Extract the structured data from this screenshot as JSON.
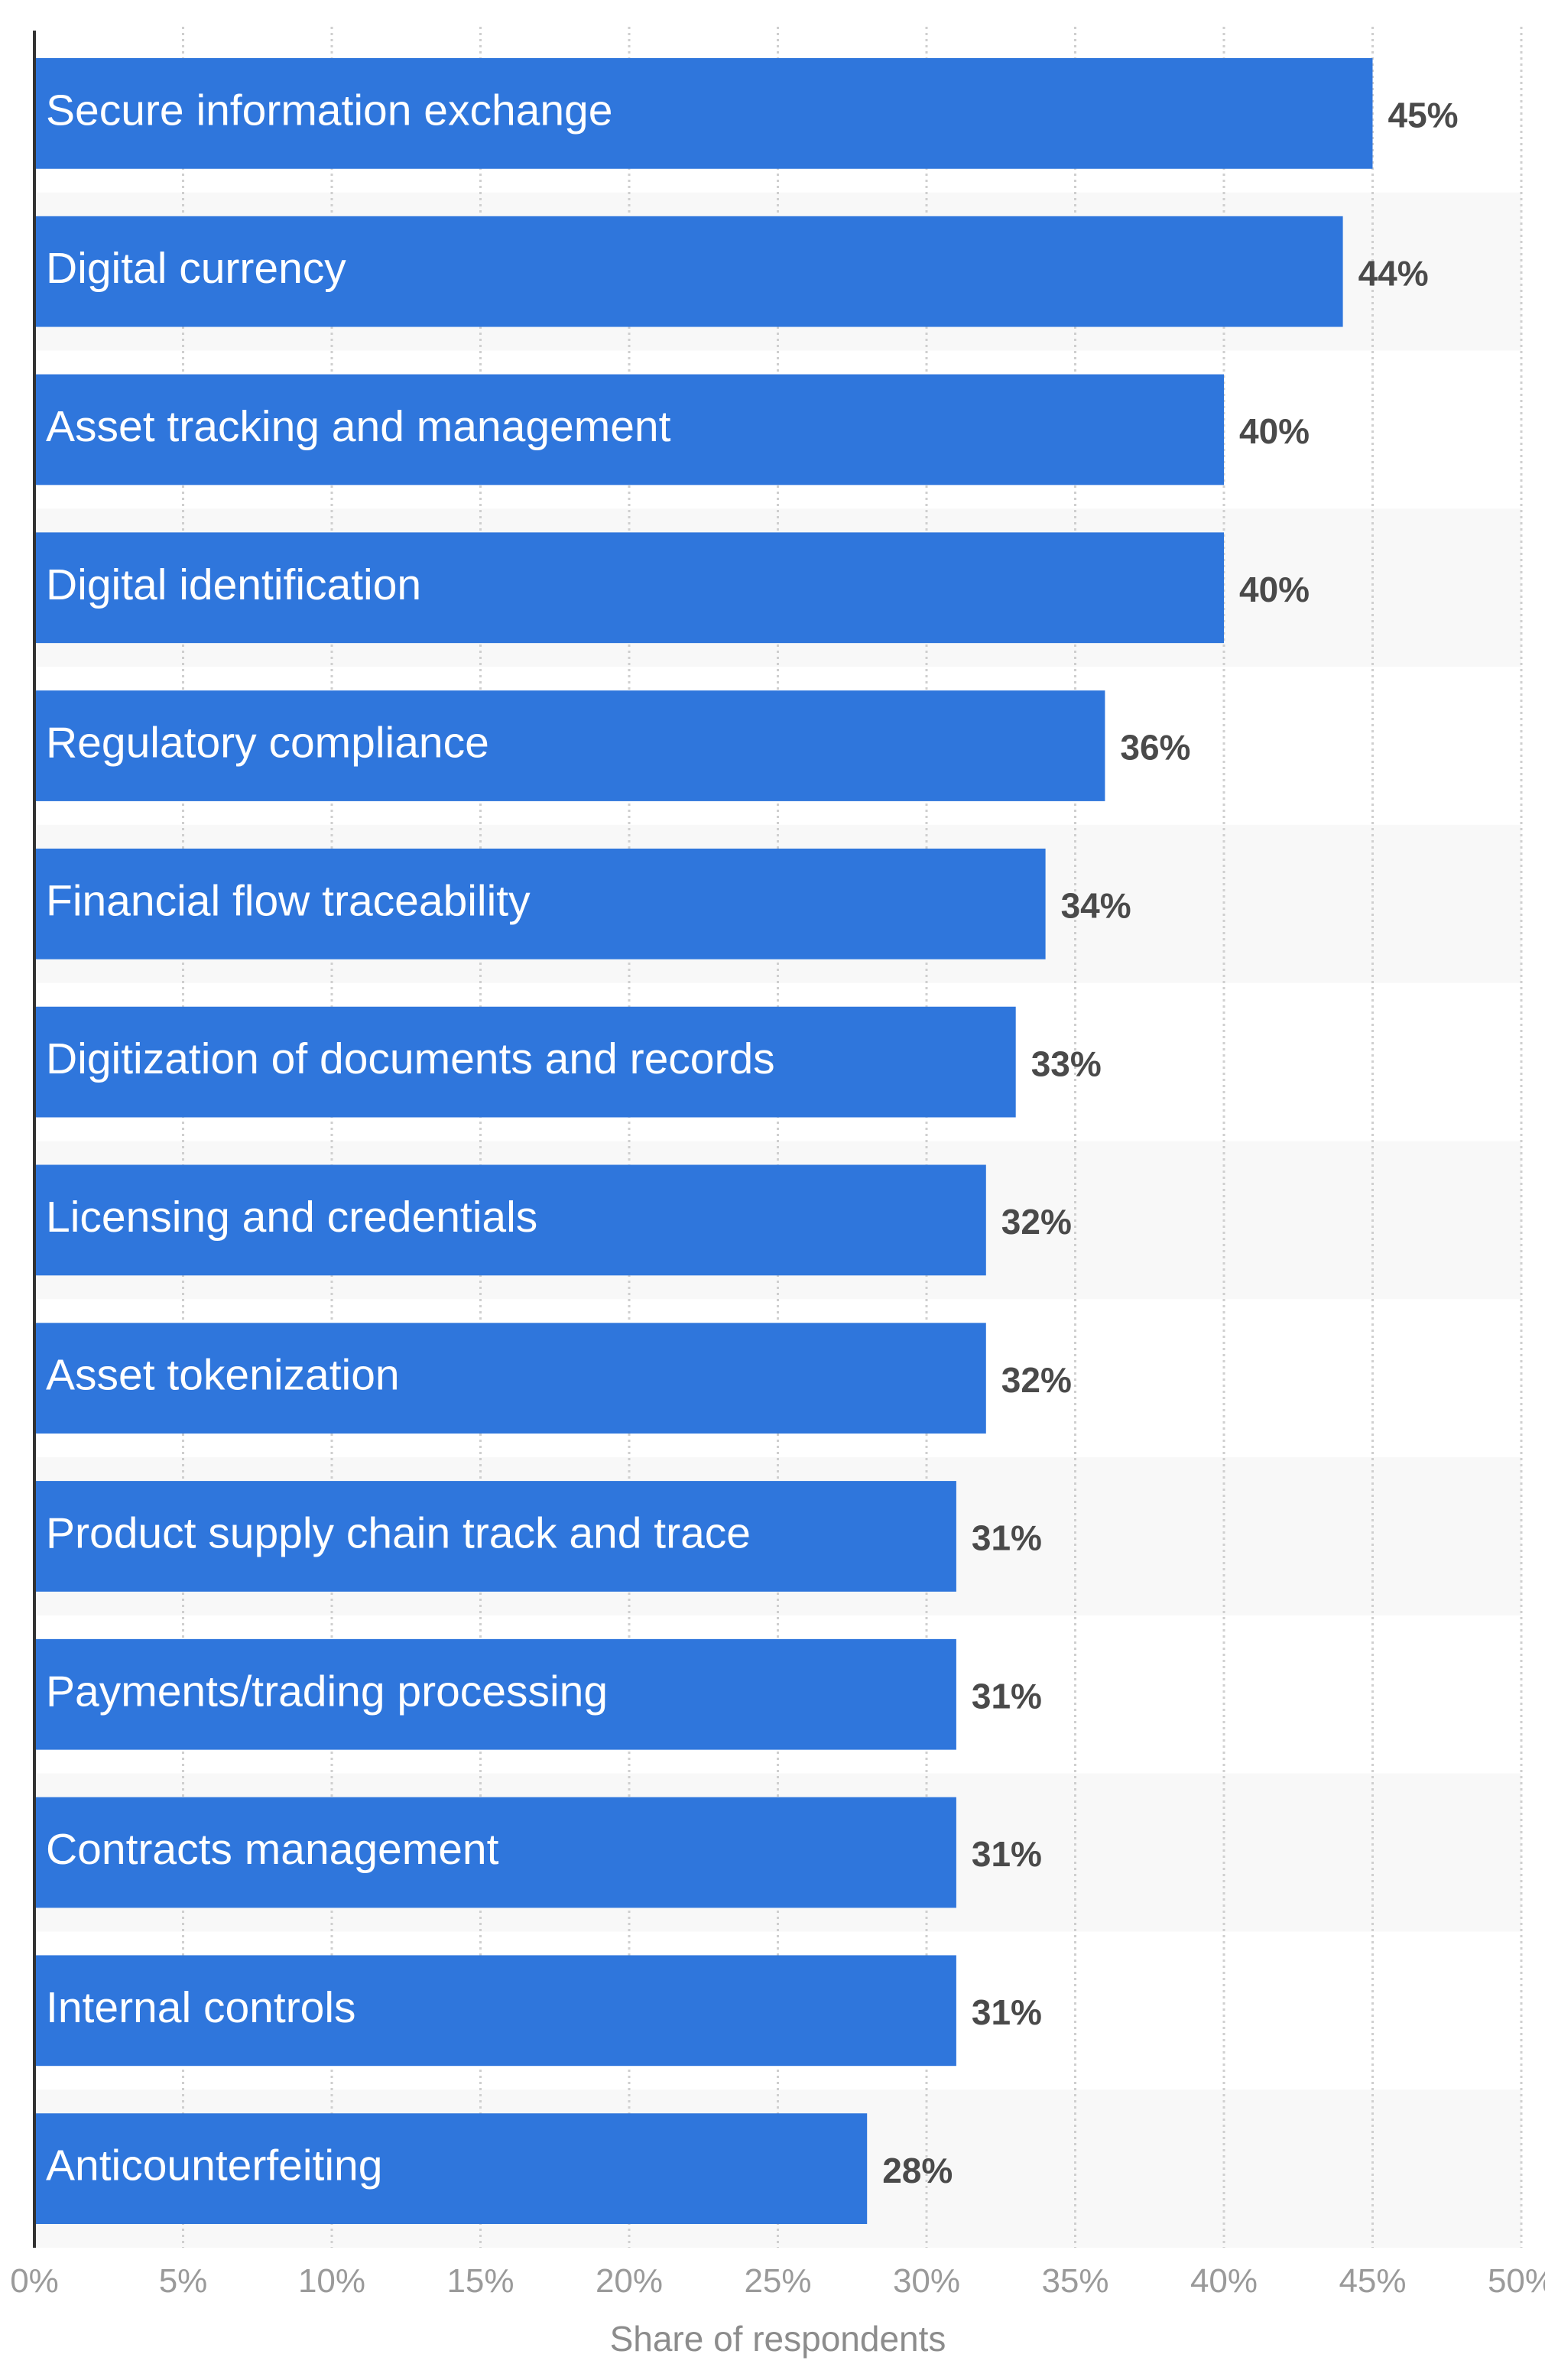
{
  "chart_data": {
    "type": "bar",
    "orientation": "horizontal",
    "categories": [
      "Secure information exchange",
      "Digital currency",
      "Asset tracking and management",
      "Digital identification",
      "Regulatory  compliance",
      "Financial flow traceability",
      "Digitization of documents and records",
      "Licensing and credentials",
      "Asset tokenization",
      "Product supply chain track and trace",
      "Payments/trading processing",
      "Contracts management",
      "Internal controls",
      "Anticounterfeiting"
    ],
    "values": [
      45,
      44,
      40,
      40,
      36,
      34,
      33,
      32,
      32,
      31,
      31,
      31,
      31,
      28
    ],
    "value_labels": [
      "45%",
      "44%",
      "40%",
      "40%",
      "36%",
      "34%",
      "33%",
      "32%",
      "32%",
      "31%",
      "31%",
      "31%",
      "31%",
      "28%"
    ],
    "xticks": [
      0,
      5,
      10,
      15,
      20,
      25,
      30,
      35,
      40,
      45,
      50
    ],
    "xtick_labels": [
      "0%",
      "5%",
      "10%",
      "15%",
      "20%",
      "25%",
      "30%",
      "35%",
      "40%",
      "45%",
      "50%"
    ],
    "xlim": [
      0,
      50
    ],
    "xlabel": "Share of respondents",
    "title": "",
    "grid": true,
    "bar_color": "#2f76dc",
    "alt_row_color": "#f8f8f8"
  }
}
